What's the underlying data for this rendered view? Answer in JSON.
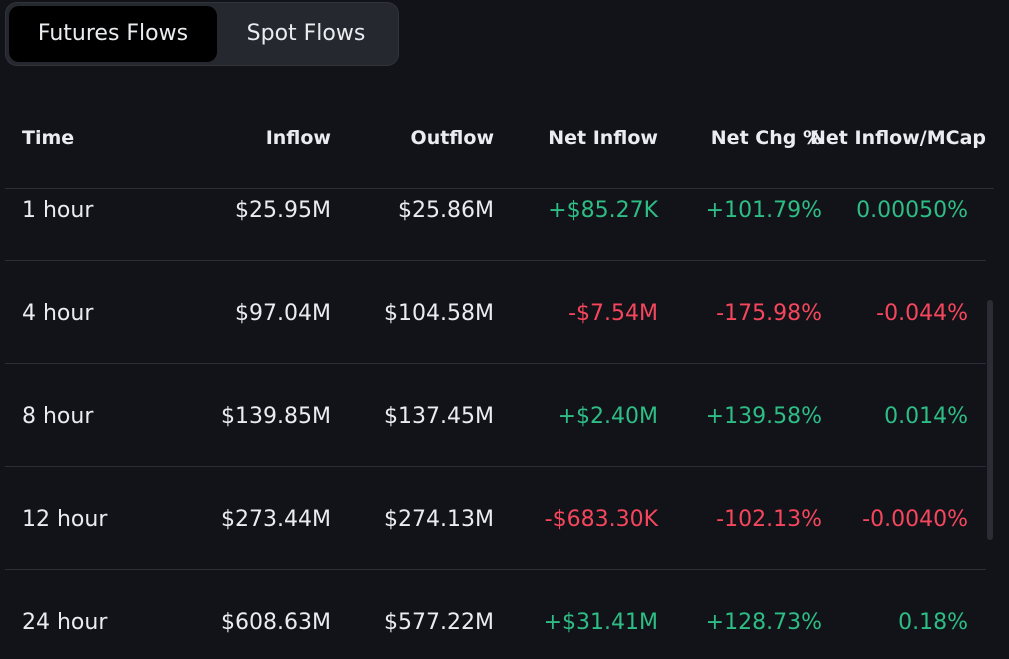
{
  "tabs": [
    {
      "label": "Futures Flows",
      "active": true
    },
    {
      "label": "Spot Flows",
      "active": false
    }
  ],
  "table": {
    "columns": [
      "Time",
      "Inflow",
      "Outflow",
      "Net Inflow",
      "Net Chg %",
      "Net Inflow/MCap"
    ],
    "rows": [
      {
        "time": "1 hour",
        "inflow": "$25.95M",
        "outflow": "$25.86M",
        "net_inflow": "+$85.27K",
        "net_chg": "+101.79%",
        "net_mcap": "0.00050%",
        "direction": "positive"
      },
      {
        "time": "4 hour",
        "inflow": "$97.04M",
        "outflow": "$104.58M",
        "net_inflow": "-$7.54M",
        "net_chg": "-175.98%",
        "net_mcap": "-0.044%",
        "direction": "negative"
      },
      {
        "time": "8 hour",
        "inflow": "$139.85M",
        "outflow": "$137.45M",
        "net_inflow": "+$2.40M",
        "net_chg": "+139.58%",
        "net_mcap": "0.014%",
        "direction": "positive"
      },
      {
        "time": "12 hour",
        "inflow": "$273.44M",
        "outflow": "$274.13M",
        "net_inflow": "-$683.30K",
        "net_chg": "-102.13%",
        "net_mcap": "-0.0040%",
        "direction": "negative"
      },
      {
        "time": "24 hour",
        "inflow": "$608.63M",
        "outflow": "$577.22M",
        "net_inflow": "+$31.41M",
        "net_chg": "+128.73%",
        "net_mcap": "0.18%",
        "direction": "positive"
      }
    ]
  },
  "colors": {
    "background": "#111318",
    "positive": "#2ebd85",
    "negative": "#f6465d",
    "text": "#eaecef"
  }
}
